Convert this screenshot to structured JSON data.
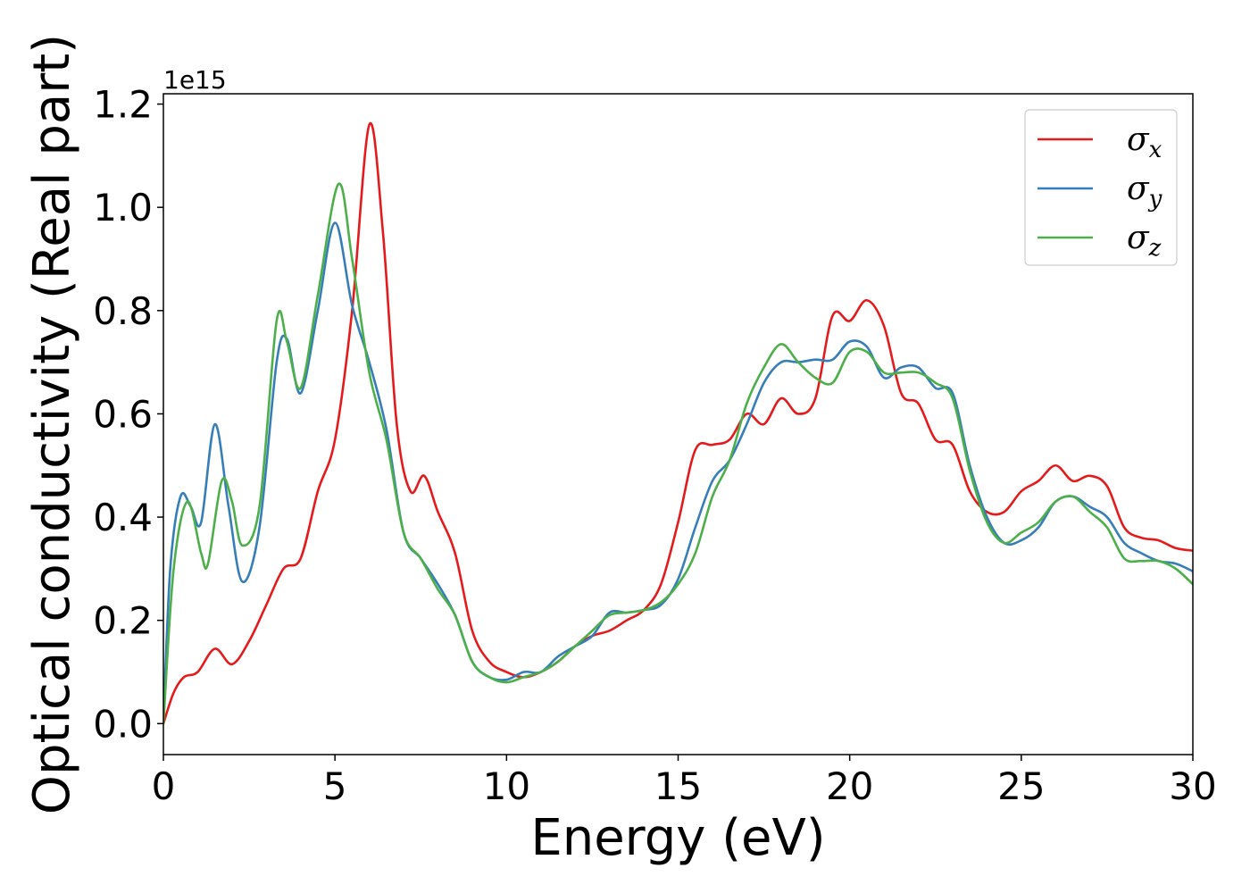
{
  "chart_data": {
    "type": "line",
    "xlabel": "Energy (eV)",
    "ylabel": "Optical conductivity (Real part)",
    "y_offset_label": "1e15",
    "y_scale": 1000000000000000.0,
    "xlim": [
      0,
      30
    ],
    "ylim": [
      -0.06,
      1.22
    ],
    "xticks": [
      0,
      5,
      10,
      15,
      20,
      25,
      30
    ],
    "xtick_labels": [
      "0",
      "5",
      "10",
      "15",
      "20",
      "25",
      "30"
    ],
    "yticks": [
      0.0,
      0.2,
      0.4,
      0.6,
      0.8,
      1.0,
      1.2
    ],
    "ytick_labels": [
      "0.0",
      "0.2",
      "0.4",
      "0.6",
      "0.8",
      "1.0",
      "1.2"
    ],
    "grid": false,
    "legend": {
      "placement": "top-right",
      "entries": [
        {
          "symbol": "σ",
          "subscript": "x",
          "color": "#e41a1c"
        },
        {
          "symbol": "σ",
          "subscript": "y",
          "color": "#377eb8"
        },
        {
          "symbol": "σ",
          "subscript": "z",
          "color": "#4daf4a"
        }
      ]
    },
    "series": [
      {
        "legend": "σx",
        "color": "#e41a1c",
        "points": [
          [
            0,
            0.0
          ],
          [
            0.3,
            0.06
          ],
          [
            0.6,
            0.09
          ],
          [
            1.0,
            0.1
          ],
          [
            1.5,
            0.145
          ],
          [
            2.0,
            0.115
          ],
          [
            2.5,
            0.16
          ],
          [
            3.0,
            0.23
          ],
          [
            3.5,
            0.3
          ],
          [
            4.0,
            0.32
          ],
          [
            4.5,
            0.45
          ],
          [
            5.0,
            0.55
          ],
          [
            5.5,
            0.8
          ],
          [
            6.0,
            1.16
          ],
          [
            6.4,
            0.95
          ],
          [
            6.8,
            0.58
          ],
          [
            7.2,
            0.45
          ],
          [
            7.6,
            0.48
          ],
          [
            8.0,
            0.41
          ],
          [
            8.5,
            0.33
          ],
          [
            9.0,
            0.18
          ],
          [
            9.5,
            0.12
          ],
          [
            10.0,
            0.1
          ],
          [
            10.5,
            0.09
          ],
          [
            11.0,
            0.1
          ],
          [
            11.5,
            0.12
          ],
          [
            12.0,
            0.15
          ],
          [
            12.5,
            0.17
          ],
          [
            13.0,
            0.18
          ],
          [
            13.5,
            0.2
          ],
          [
            14.0,
            0.22
          ],
          [
            14.5,
            0.27
          ],
          [
            15.0,
            0.39
          ],
          [
            15.5,
            0.53
          ],
          [
            16.0,
            0.54
          ],
          [
            16.5,
            0.55
          ],
          [
            17.0,
            0.6
          ],
          [
            17.5,
            0.58
          ],
          [
            18.0,
            0.63
          ],
          [
            18.5,
            0.6
          ],
          [
            19.0,
            0.63
          ],
          [
            19.5,
            0.79
          ],
          [
            20.0,
            0.78
          ],
          [
            20.5,
            0.82
          ],
          [
            21.0,
            0.77
          ],
          [
            21.5,
            0.64
          ],
          [
            22.0,
            0.62
          ],
          [
            22.5,
            0.55
          ],
          [
            23.0,
            0.54
          ],
          [
            23.5,
            0.45
          ],
          [
            24.0,
            0.41
          ],
          [
            24.5,
            0.41
          ],
          [
            25.0,
            0.45
          ],
          [
            25.5,
            0.47
          ],
          [
            26.0,
            0.5
          ],
          [
            26.5,
            0.47
          ],
          [
            27.0,
            0.48
          ],
          [
            27.5,
            0.46
          ],
          [
            28.0,
            0.38
          ],
          [
            28.5,
            0.36
          ],
          [
            29.0,
            0.355
          ],
          [
            29.5,
            0.34
          ],
          [
            30.0,
            0.335
          ]
        ]
      },
      {
        "legend": "σy",
        "color": "#377eb8",
        "points": [
          [
            0,
            0.0
          ],
          [
            0.2,
            0.3
          ],
          [
            0.5,
            0.44
          ],
          [
            0.8,
            0.42
          ],
          [
            1.1,
            0.39
          ],
          [
            1.5,
            0.58
          ],
          [
            1.9,
            0.42
          ],
          [
            2.3,
            0.275
          ],
          [
            2.8,
            0.38
          ],
          [
            3.3,
            0.7
          ],
          [
            3.6,
            0.745
          ],
          [
            4.0,
            0.64
          ],
          [
            4.5,
            0.8
          ],
          [
            5.0,
            0.97
          ],
          [
            5.5,
            0.81
          ],
          [
            6.0,
            0.7
          ],
          [
            6.5,
            0.57
          ],
          [
            7.0,
            0.37
          ],
          [
            7.5,
            0.32
          ],
          [
            8.0,
            0.27
          ],
          [
            8.5,
            0.21
          ],
          [
            9.0,
            0.12
          ],
          [
            9.5,
            0.09
          ],
          [
            10.0,
            0.085
          ],
          [
            10.5,
            0.1
          ],
          [
            11.0,
            0.1
          ],
          [
            11.5,
            0.13
          ],
          [
            12.0,
            0.15
          ],
          [
            12.5,
            0.17
          ],
          [
            13.0,
            0.215
          ],
          [
            13.5,
            0.215
          ],
          [
            14.0,
            0.22
          ],
          [
            14.5,
            0.23
          ],
          [
            15.0,
            0.28
          ],
          [
            15.5,
            0.38
          ],
          [
            16.0,
            0.47
          ],
          [
            16.5,
            0.51
          ],
          [
            17.0,
            0.58
          ],
          [
            17.5,
            0.66
          ],
          [
            18.0,
            0.7
          ],
          [
            18.5,
            0.7
          ],
          [
            19.0,
            0.705
          ],
          [
            19.5,
            0.705
          ],
          [
            20.0,
            0.74
          ],
          [
            20.5,
            0.73
          ],
          [
            21.0,
            0.67
          ],
          [
            21.5,
            0.69
          ],
          [
            22.0,
            0.69
          ],
          [
            22.5,
            0.65
          ],
          [
            23.0,
            0.64
          ],
          [
            23.5,
            0.5
          ],
          [
            24.0,
            0.4
          ],
          [
            24.5,
            0.35
          ],
          [
            25.0,
            0.355
          ],
          [
            25.5,
            0.38
          ],
          [
            26.0,
            0.43
          ],
          [
            26.5,
            0.44
          ],
          [
            27.0,
            0.42
          ],
          [
            27.5,
            0.4
          ],
          [
            28.0,
            0.35
          ],
          [
            28.5,
            0.33
          ],
          [
            29.0,
            0.315
          ],
          [
            29.5,
            0.31
          ],
          [
            30.0,
            0.295
          ]
        ]
      },
      {
        "legend": "σz",
        "color": "#4daf4a",
        "points": [
          [
            0,
            0.0
          ],
          [
            0.3,
            0.3
          ],
          [
            0.7,
            0.43
          ],
          [
            1.1,
            0.33
          ],
          [
            1.3,
            0.31
          ],
          [
            1.7,
            0.47
          ],
          [
            2.0,
            0.43
          ],
          [
            2.3,
            0.345
          ],
          [
            2.8,
            0.42
          ],
          [
            3.3,
            0.78
          ],
          [
            3.6,
            0.74
          ],
          [
            4.0,
            0.65
          ],
          [
            4.5,
            0.83
          ],
          [
            5.1,
            1.045
          ],
          [
            5.5,
            0.9
          ],
          [
            6.0,
            0.68
          ],
          [
            6.5,
            0.55
          ],
          [
            7.0,
            0.37
          ],
          [
            7.5,
            0.32
          ],
          [
            8.0,
            0.26
          ],
          [
            8.5,
            0.21
          ],
          [
            9.0,
            0.12
          ],
          [
            9.5,
            0.09
          ],
          [
            10.0,
            0.08
          ],
          [
            10.5,
            0.09
          ],
          [
            11.0,
            0.1
          ],
          [
            11.5,
            0.12
          ],
          [
            12.0,
            0.15
          ],
          [
            12.5,
            0.18
          ],
          [
            13.0,
            0.21
          ],
          [
            13.5,
            0.215
          ],
          [
            14.0,
            0.22
          ],
          [
            14.5,
            0.235
          ],
          [
            15.0,
            0.27
          ],
          [
            15.5,
            0.33
          ],
          [
            16.0,
            0.44
          ],
          [
            16.5,
            0.51
          ],
          [
            17.0,
            0.62
          ],
          [
            17.5,
            0.69
          ],
          [
            18.0,
            0.735
          ],
          [
            18.5,
            0.7
          ],
          [
            19.0,
            0.67
          ],
          [
            19.5,
            0.66
          ],
          [
            20.0,
            0.72
          ],
          [
            20.5,
            0.72
          ],
          [
            21.0,
            0.68
          ],
          [
            21.5,
            0.68
          ],
          [
            22.0,
            0.68
          ],
          [
            22.5,
            0.66
          ],
          [
            23.0,
            0.63
          ],
          [
            23.5,
            0.49
          ],
          [
            24.0,
            0.39
          ],
          [
            24.5,
            0.35
          ],
          [
            25.0,
            0.37
          ],
          [
            25.5,
            0.39
          ],
          [
            26.0,
            0.43
          ],
          [
            26.5,
            0.44
          ],
          [
            27.0,
            0.41
          ],
          [
            27.5,
            0.38
          ],
          [
            28.0,
            0.32
          ],
          [
            28.5,
            0.315
          ],
          [
            29.0,
            0.315
          ],
          [
            29.5,
            0.3
          ],
          [
            30.0,
            0.27
          ]
        ]
      }
    ]
  }
}
